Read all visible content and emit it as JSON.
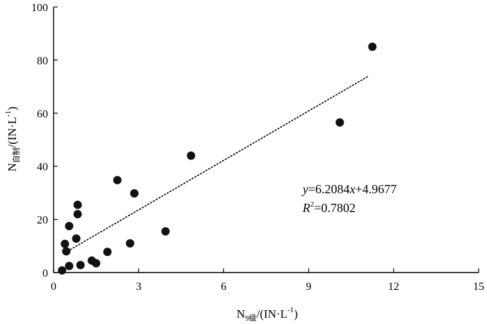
{
  "chart_data": {
    "type": "scatter",
    "xlim": [
      0,
      15
    ],
    "ylim": [
      0,
      100
    ],
    "xticks": [
      0,
      3,
      6,
      9,
      12,
      15
    ],
    "yticks": [
      0,
      20,
      40,
      60,
      80,
      100
    ],
    "xlabel": {
      "main": "N",
      "sub": "9级",
      "unit_prefix": "/(IN·L",
      "unit_sup": "-1",
      "unit_suffix": ")"
    },
    "ylabel": {
      "main": "N",
      "sub": "自制",
      "unit_prefix": "/(IN·L",
      "unit_sup": "-1",
      "unit_suffix": ")"
    },
    "points": [
      {
        "x": 0.3,
        "y": 0.8
      },
      {
        "x": 0.4,
        "y": 10.8
      },
      {
        "x": 0.45,
        "y": 8.0
      },
      {
        "x": 0.55,
        "y": 17.5
      },
      {
        "x": 0.55,
        "y": 2.5
      },
      {
        "x": 0.8,
        "y": 12.8
      },
      {
        "x": 0.85,
        "y": 25.5
      },
      {
        "x": 0.85,
        "y": 22.0
      },
      {
        "x": 0.95,
        "y": 2.8
      },
      {
        "x": 1.35,
        "y": 4.5
      },
      {
        "x": 1.5,
        "y": 3.5
      },
      {
        "x": 1.9,
        "y": 7.8
      },
      {
        "x": 2.25,
        "y": 34.8
      },
      {
        "x": 2.7,
        "y": 11.0
      },
      {
        "x": 2.85,
        "y": 29.8
      },
      {
        "x": 3.95,
        "y": 15.5
      },
      {
        "x": 4.85,
        "y": 44.0
      },
      {
        "x": 10.1,
        "y": 56.5
      },
      {
        "x": 11.25,
        "y": 85.0
      }
    ],
    "trendline": {
      "slope": 6.2084,
      "intercept": 4.9677,
      "x_start": 0.4,
      "x_end": 11.1,
      "style": "dotted"
    },
    "annotation": {
      "equation_y": "y",
      "equation_rest": "=6.2084",
      "equation_x": "x",
      "equation_tail": "+4.9677",
      "r2_label": "R",
      "r2_sup": "2",
      "r2_value": "=0.7802"
    },
    "colors": {
      "points": "#111111",
      "axis": "#000000",
      "trend": "#000000"
    }
  }
}
